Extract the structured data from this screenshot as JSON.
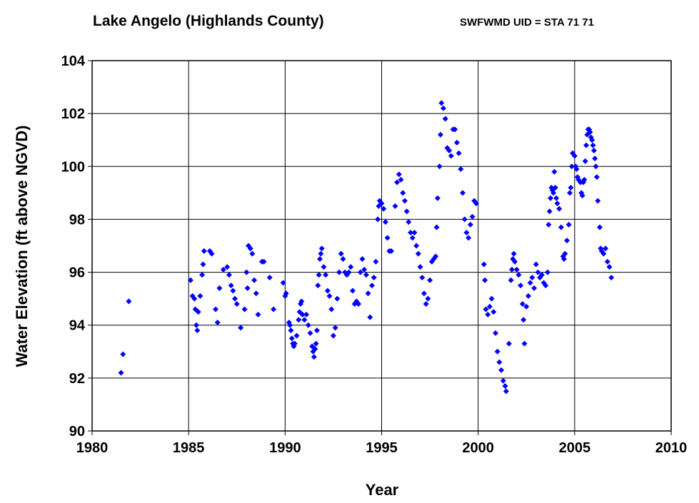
{
  "chart_data": {
    "type": "scatter",
    "title": "Lake Angelo (Highlands County)",
    "subtitle": "SWFWMD UID = STA 71 71",
    "xlabel": "Year",
    "ylabel": "Water Elevation (ft above NGVD)",
    "xlim": [
      1980,
      2010
    ],
    "xticks": [
      1980,
      1985,
      1990,
      1995,
      2000,
      2005,
      2010
    ],
    "ylim": [
      90,
      104
    ],
    "yticks": [
      90,
      92,
      94,
      96,
      98,
      100,
      102,
      104
    ],
    "grid": true,
    "series": [
      {
        "color": "#0000ff",
        "marker": "diamond",
        "x": [
          1981.5,
          1981.6,
          1981.9,
          1985.1,
          1985.2,
          1985.3,
          1985.35,
          1985.4,
          1985.45,
          1985.5,
          1985.6,
          1985.7,
          1985.75,
          1985.8,
          1986.1,
          1986.2,
          1986.4,
          1986.5,
          1986.6,
          1986.8,
          1987.0,
          1987.1,
          1987.2,
          1987.3,
          1987.4,
          1987.5,
          1987.7,
          1987.9,
          1988.0,
          1988.05,
          1988.1,
          1988.2,
          1988.3,
          1988.4,
          1988.5,
          1988.6,
          1988.8,
          1988.9,
          1989.2,
          1989.4,
          1989.9,
          1990.0,
          1990.05,
          1990.2,
          1990.25,
          1990.3,
          1990.35,
          1990.4,
          1990.45,
          1990.5,
          1990.6,
          1990.7,
          1990.75,
          1990.8,
          1990.85,
          1990.9,
          1991.0,
          1991.1,
          1991.2,
          1991.3,
          1991.4,
          1991.45,
          1991.5,
          1991.55,
          1991.6,
          1991.65,
          1991.7,
          1991.75,
          1991.8,
          1991.85,
          1991.9,
          1992.0,
          1992.1,
          1992.2,
          1992.3,
          1992.4,
          1992.5,
          1992.6,
          1992.7,
          1992.8,
          1992.9,
          1993.0,
          1993.1,
          1993.2,
          1993.3,
          1993.4,
          1993.5,
          1993.6,
          1993.7,
          1993.8,
          1993.9,
          1994.0,
          1994.1,
          1994.2,
          1994.3,
          1994.4,
          1994.5,
          1994.6,
          1994.7,
          1994.8,
          1994.85,
          1994.9,
          1995.0,
          1995.1,
          1995.2,
          1995.3,
          1995.4,
          1995.5,
          1995.7,
          1995.8,
          1995.9,
          1996.0,
          1996.1,
          1996.2,
          1996.3,
          1996.4,
          1996.5,
          1996.6,
          1996.7,
          1996.8,
          1996.9,
          1997.0,
          1997.1,
          1997.2,
          1997.3,
          1997.4,
          1997.5,
          1997.6,
          1997.7,
          1997.8,
          1997.85,
          1997.9,
          1998.0,
          1998.05,
          1998.1,
          1998.2,
          1998.3,
          1998.4,
          1998.5,
          1998.6,
          1998.7,
          1998.8,
          1998.9,
          1999.0,
          1999.1,
          1999.2,
          1999.3,
          1999.4,
          1999.5,
          1999.6,
          1999.7,
          1999.8,
          1999.9,
          2000.3,
          2000.35,
          2000.4,
          2000.5,
          2000.6,
          2000.7,
          2000.8,
          2000.9,
          2001.0,
          2001.1,
          2001.2,
          2001.3,
          2001.4,
          2001.45,
          2001.6,
          2001.7,
          2001.75,
          2001.8,
          2001.85,
          2001.9,
          2002.0,
          2002.1,
          2002.2,
          2002.3,
          2002.35,
          2002.4,
          2002.5,
          2002.6,
          2002.7,
          2002.8,
          2002.9,
          2003.0,
          2003.1,
          2003.2,
          2003.3,
          2003.4,
          2003.5,
          2003.6,
          2003.65,
          2003.7,
          2003.75,
          2003.8,
          2003.85,
          2003.9,
          2003.95,
          2004.0,
          2004.05,
          2004.1,
          2004.2,
          2004.3,
          2004.4,
          2004.45,
          2004.5,
          2004.6,
          2004.7,
          2004.75,
          2004.8,
          2004.85,
          2004.9,
          2005.0,
          2005.05,
          2005.1,
          2005.15,
          2005.2,
          2005.3,
          2005.35,
          2005.4,
          2005.45,
          2005.5,
          2005.55,
          2005.6,
          2005.65,
          2005.7,
          2005.75,
          2005.8,
          2005.85,
          2005.9,
          2005.95,
          2006.0,
          2006.05,
          2006.1,
          2006.15,
          2006.2,
          2006.3,
          2006.35,
          2006.4,
          2006.5,
          2006.6,
          2006.7,
          2006.8,
          2006.9
        ],
        "values": [
          92.2,
          92.9,
          94.9,
          95.7,
          95.1,
          95.0,
          94.6,
          94.0,
          93.8,
          94.5,
          95.1,
          95.9,
          96.3,
          96.8,
          96.8,
          96.7,
          94.6,
          94.1,
          95.4,
          96.1,
          96.2,
          95.9,
          95.5,
          95.3,
          95.0,
          94.8,
          93.9,
          94.6,
          96.0,
          95.4,
          97.0,
          96.9,
          96.7,
          95.7,
          95.2,
          94.4,
          96.4,
          96.4,
          95.8,
          94.6,
          95.6,
          95.1,
          95.2,
          94.1,
          94.0,
          93.8,
          93.5,
          93.3,
          93.2,
          93.3,
          93.6,
          94.2,
          94.5,
          94.8,
          94.9,
          94.4,
          94.2,
          94.4,
          94.0,
          93.7,
          93.2,
          93.0,
          92.8,
          93.1,
          93.3,
          93.8,
          95.5,
          95.9,
          96.5,
          96.7,
          96.9,
          96.2,
          95.9,
          95.3,
          95.1,
          94.6,
          93.6,
          93.9,
          95.0,
          96.0,
          96.7,
          96.5,
          96.0,
          95.9,
          96.0,
          96.2,
          95.3,
          94.8,
          94.9,
          94.8,
          96.0,
          96.5,
          96.1,
          95.9,
          95.2,
          94.3,
          95.5,
          95.8,
          96.4,
          98.0,
          98.5,
          98.7,
          98.6,
          98.4,
          97.9,
          97.3,
          96.8,
          96.8,
          98.5,
          99.4,
          99.7,
          99.5,
          99.0,
          98.7,
          98.3,
          97.9,
          97.5,
          97.3,
          97.5,
          97.0,
          96.7,
          96.2,
          95.8,
          95.2,
          94.8,
          95.0,
          95.7,
          96.4,
          96.5,
          96.6,
          97.7,
          98.8,
          100.0,
          101.2,
          102.4,
          102.2,
          101.8,
          100.7,
          100.6,
          100.4,
          101.4,
          101.4,
          100.9,
          100.5,
          99.9,
          99.0,
          98.0,
          97.5,
          97.3,
          97.8,
          98.1,
          98.7,
          98.6,
          96.3,
          95.7,
          94.6,
          94.4,
          94.7,
          95.0,
          94.5,
          93.7,
          93.0,
          92.6,
          92.3,
          91.9,
          91.7,
          91.5,
          93.3,
          95.7,
          96.1,
          96.5,
          96.7,
          96.4,
          96.1,
          95.9,
          95.5,
          94.8,
          94.2,
          93.3,
          94.7,
          95.1,
          95.6,
          95.8,
          95.4,
          96.3,
          96.0,
          95.8,
          95.9,
          95.6,
          95.5,
          96.0,
          97.8,
          98.3,
          98.8,
          99.2,
          99.1,
          99.0,
          99.8,
          99.2,
          98.8,
          98.6,
          98.4,
          97.7,
          96.6,
          96.5,
          96.7,
          97.2,
          97.8,
          99.0,
          99.2,
          100.0,
          100.5,
          100.4,
          100.0,
          99.9,
          99.6,
          99.5,
          99.4,
          99.0,
          98.9,
          99.4,
          99.5,
          100.2,
          100.8,
          101.2,
          101.4,
          101.4,
          101.3,
          101.1,
          101.0,
          100.8,
          100.6,
          100.3,
          100.0,
          99.6,
          98.7,
          97.7,
          96.9,
          96.8,
          96.7,
          96.9,
          96.4,
          96.2,
          95.8
        ]
      }
    ]
  }
}
